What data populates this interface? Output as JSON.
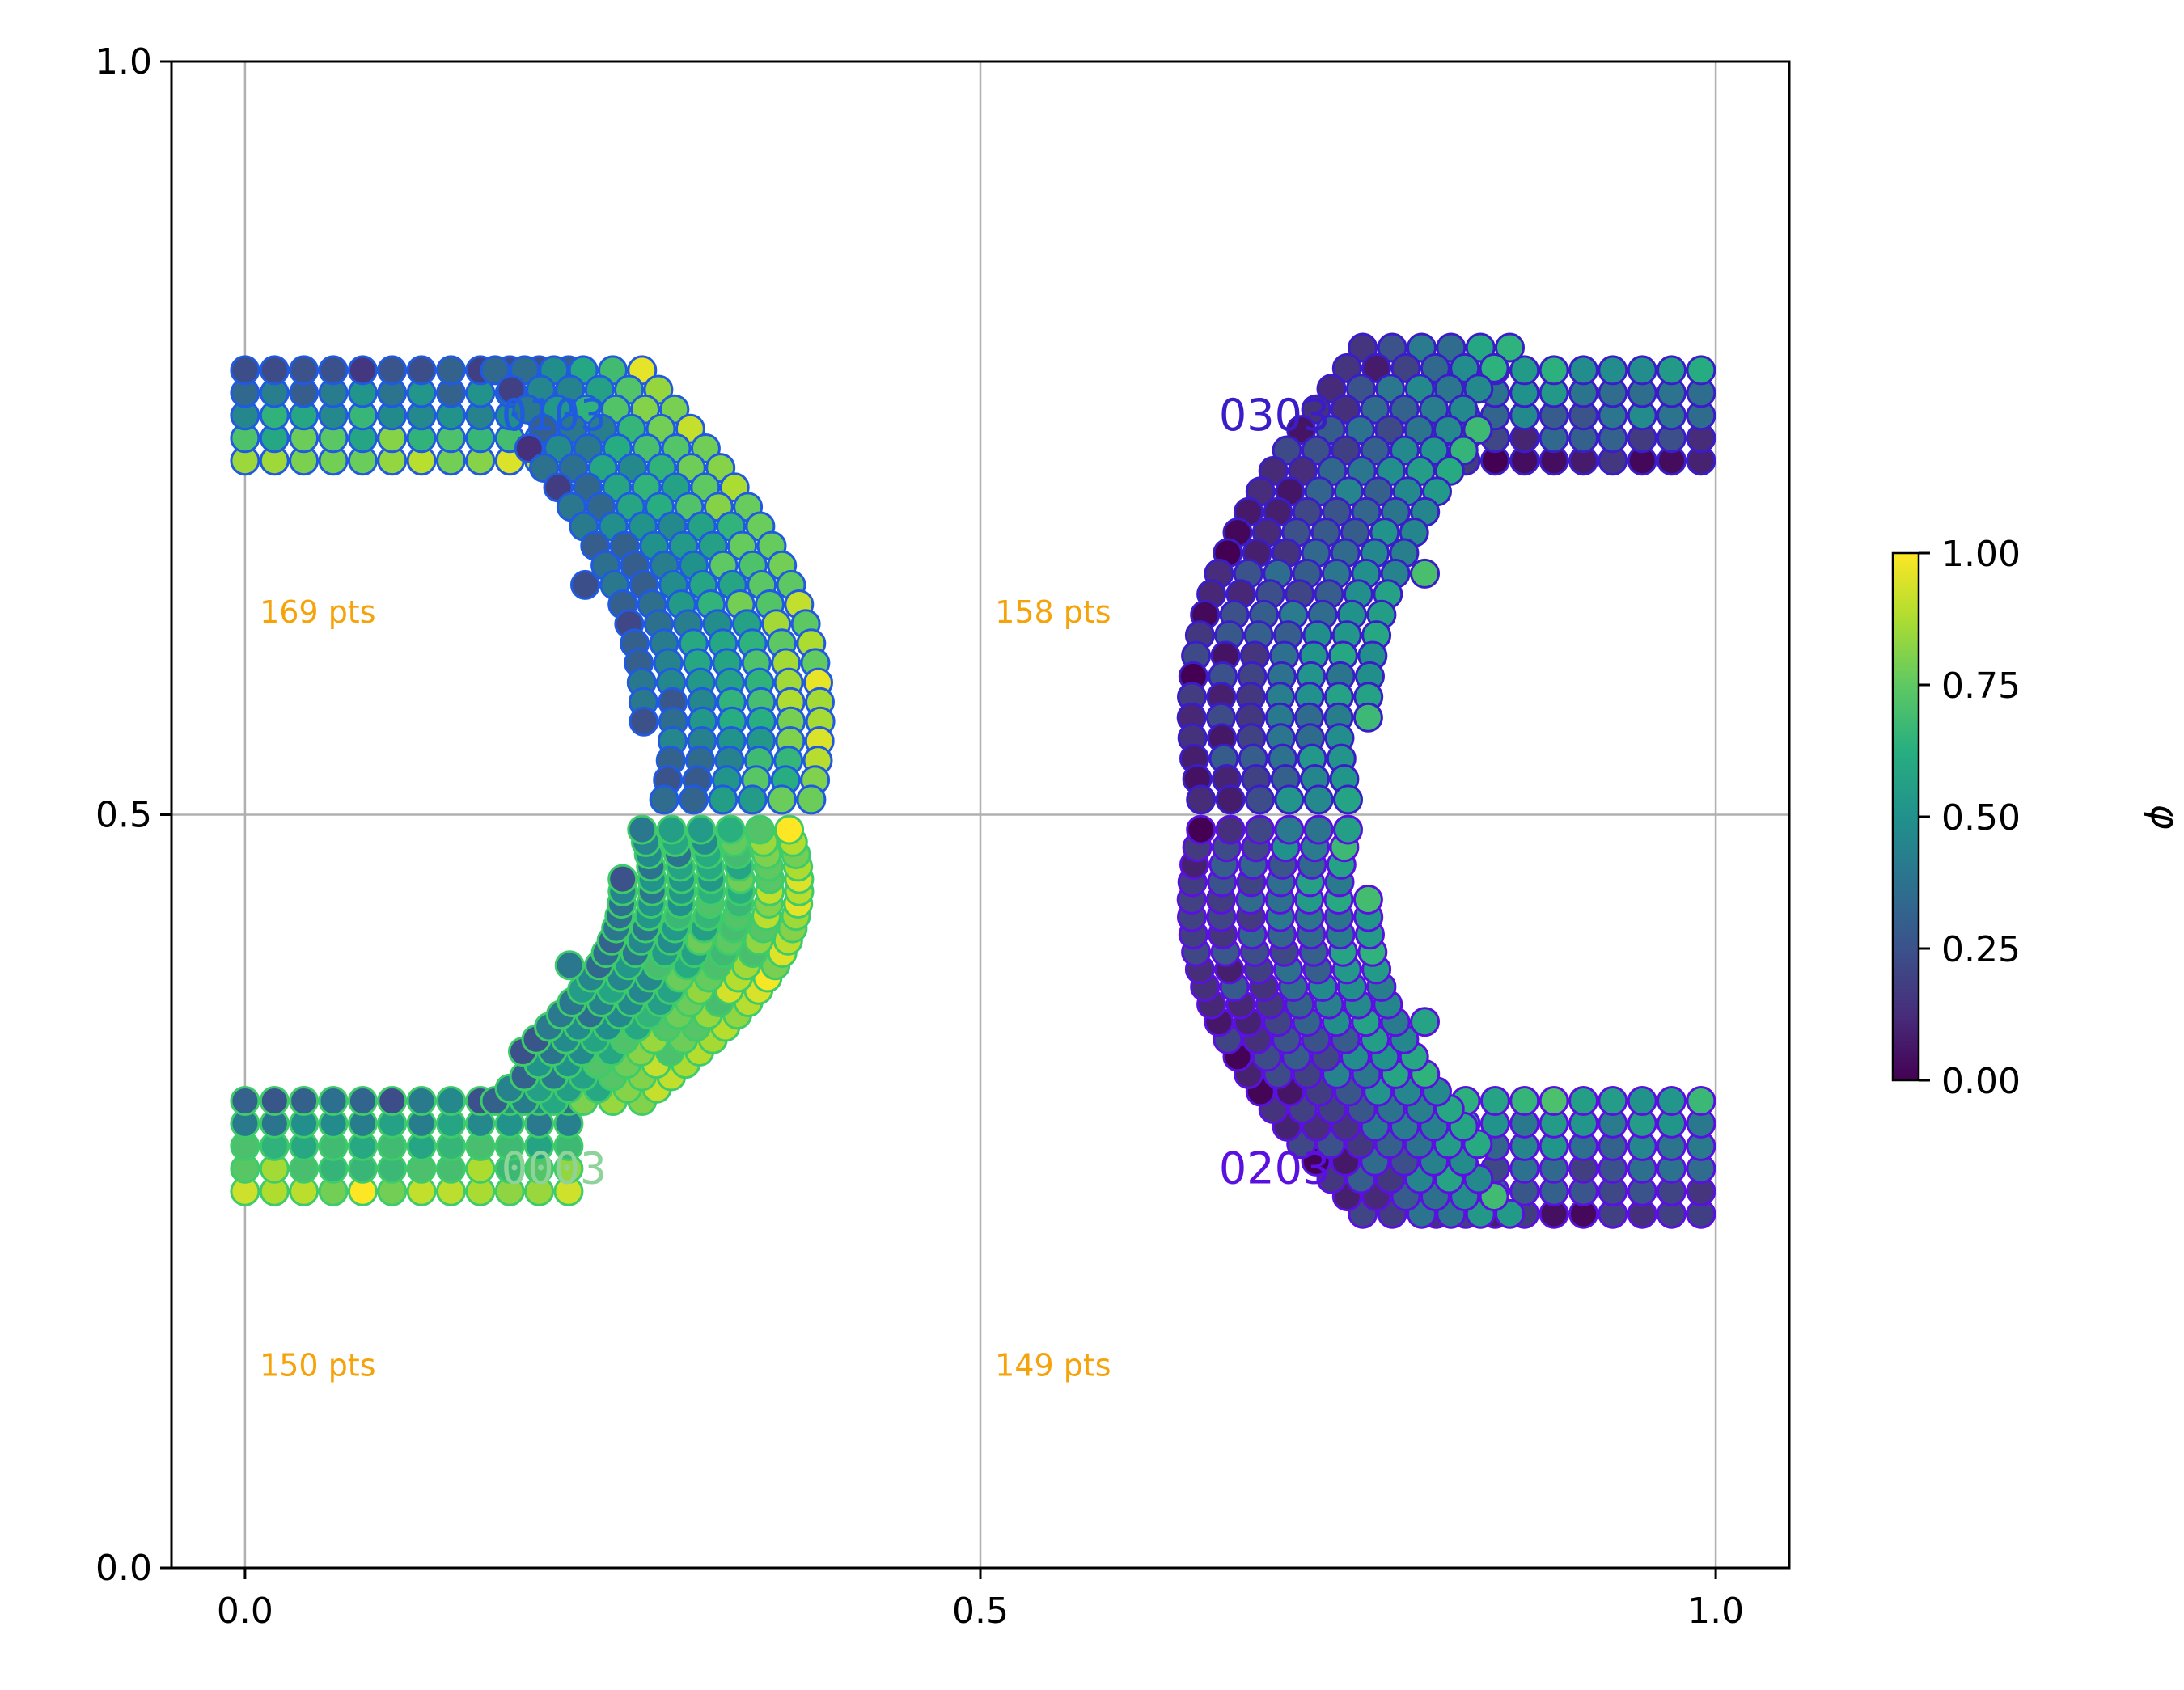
{
  "chart_data": {
    "type": "scatter",
    "title": "",
    "xlabel": "",
    "ylabel": "",
    "xlim": [
      -0.05,
      1.05
    ],
    "ylim": [
      0.0,
      1.0
    ],
    "x_ticks": [
      0.0,
      0.5,
      1.0
    ],
    "x_tick_labels": [
      "0.0",
      "0.5",
      "1.0"
    ],
    "y_ticks": [
      0.0,
      0.5,
      1.0
    ],
    "y_tick_labels": [
      "0.0",
      "0.5",
      "1.0"
    ],
    "grid": true,
    "colorbar": {
      "label": "φ",
      "range": [
        0.0,
        1.0
      ],
      "ticks": [
        0.0,
        0.25,
        0.5,
        0.75,
        1.0
      ],
      "tick_labels": [
        "0.00",
        "0.25",
        "0.50",
        "0.75",
        "1.00"
      ],
      "colormap": "viridis"
    },
    "series": [
      {
        "name": "0103",
        "label_at": [
          0.21,
          0.765
        ],
        "edge_color": "#1f5ae0",
        "label_color": "#1f5ae0",
        "label_font": "mono",
        "count_text": "169 pts",
        "count_at": [
          0.01,
          0.635
        ],
        "shape": {
          "arm_y0": 0.735,
          "arm_y1": 0.795,
          "arm_x0": 0.0,
          "arm_x1": 0.22,
          "bend_side": "left",
          "y_center": 0.5,
          "bend_top": 0.795,
          "peak_x": 0.335,
          "peak_y": 0.51
        }
      },
      {
        "name": "0003",
        "label_at": [
          0.21,
          0.265
        ],
        "edge_color": "#3ecb6a",
        "label_color": "#8ed49a",
        "label_font": "mono",
        "count_text": "150 pts",
        "count_at": [
          0.01,
          0.135
        ],
        "shape": {
          "arm_y0": 0.25,
          "arm_y1": 0.31,
          "arm_x0": 0.0,
          "arm_x1": 0.22,
          "bend_side": "left",
          "y_center": 0.5,
          "bend_top": 0.31,
          "peak_x": 0.32,
          "peak_y": 0.49
        }
      },
      {
        "name": "0303",
        "label_at": [
          0.7,
          0.765
        ],
        "edge_color": "#3a1cc8",
        "label_color": "#3a1cc8",
        "label_font": "sans",
        "count_text": "158 pts",
        "count_at": [
          0.51,
          0.635
        ],
        "shape": {
          "arm_y0": 0.735,
          "arm_y1": 0.795,
          "arm_x0": 0.81,
          "arm_x1": 1.0,
          "bend_side": "right",
          "y_center": 0.5,
          "bend_top": 0.81,
          "peak_x": 0.7,
          "peak_y": 0.51
        }
      },
      {
        "name": "0203",
        "label_at": [
          0.7,
          0.265
        ],
        "edge_color": "#5a10e0",
        "label_color": "#5a10e0",
        "label_font": "sans",
        "count_text": "149 pts",
        "count_at": [
          0.51,
          0.135
        ],
        "shape": {
          "arm_y0": 0.235,
          "arm_y1": 0.31,
          "arm_x0": 0.81,
          "arm_x1": 1.0,
          "bend_side": "right",
          "y_center": 0.5,
          "bend_top": 0.235,
          "peak_x": 0.7,
          "peak_y": 0.49
        }
      }
    ]
  }
}
